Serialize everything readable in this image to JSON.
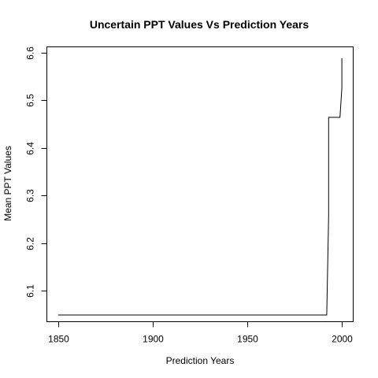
{
  "chart_data": {
    "type": "line",
    "title": "Uncertain PPT Values Vs Prediction Years",
    "xlabel": "Prediction Years",
    "ylabel": "Mean PPT Values",
    "xlim": [
      1844,
      2006
    ],
    "ylim": [
      6.035,
      6.612
    ],
    "x_ticks": [
      1850,
      1900,
      1950,
      2000
    ],
    "y_ticks": [
      6.1,
      6.2,
      6.3,
      6.4,
      6.5,
      6.6
    ],
    "x_tick_labels": [
      "1850",
      "1900",
      "1950",
      "2000"
    ],
    "y_tick_labels": [
      "6.1",
      "6.2",
      "6.3",
      "6.4",
      "6.5",
      "6.6"
    ],
    "grid": false,
    "legend": "none",
    "line_color": "#000000",
    "series": [
      {
        "points": [
          [
            1850,
            6.049
          ],
          [
            1992,
            6.049
          ],
          [
            1993,
            6.256
          ],
          [
            1993,
            6.464
          ],
          [
            1999,
            6.464
          ],
          [
            2000,
            6.525
          ],
          [
            2000,
            6.588
          ]
        ]
      }
    ]
  }
}
